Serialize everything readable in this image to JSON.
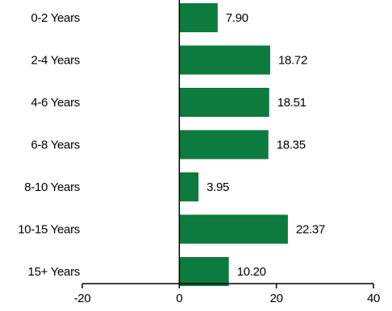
{
  "chart_data": {
    "type": "bar",
    "orientation": "horizontal",
    "categories": [
      "0-2 Years",
      "2-4 Years",
      "4-6 Years",
      "6-8 Years",
      "8-10 Years",
      "10-15 Years",
      "15+ Years"
    ],
    "values": [
      7.9,
      18.72,
      18.51,
      18.35,
      3.95,
      22.37,
      10.2
    ],
    "value_labels": [
      "7.90",
      "18.72",
      "18.51",
      "18.35",
      "3.95",
      "22.37",
      "10.20"
    ],
    "xlim": [
      -20,
      40
    ],
    "x_ticks": [
      -20,
      0,
      20,
      40
    ],
    "x_tick_labels": [
      "-20",
      "0",
      "20",
      "40"
    ],
    "grid": false,
    "legend": "none",
    "colors": {
      "bar": "#0d7a3e",
      "axis": "#000000",
      "text": "#000000"
    }
  }
}
